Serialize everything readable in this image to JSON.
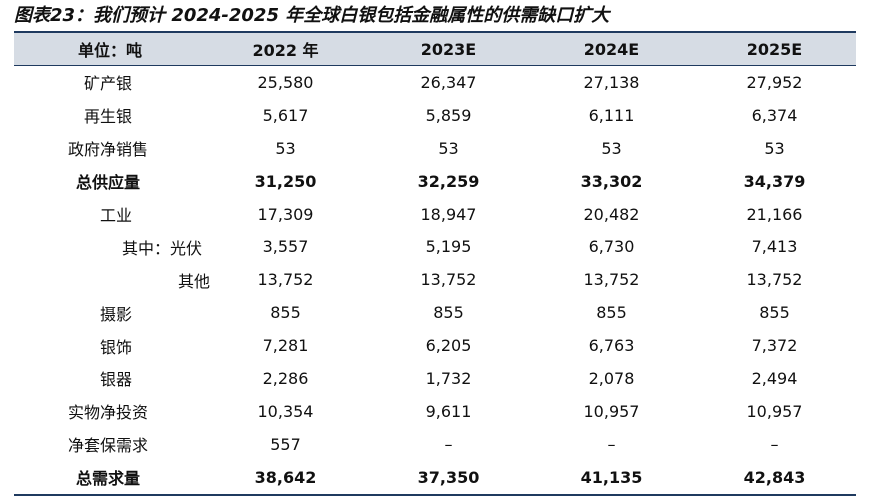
{
  "title": "图表23：我们预计 2024-2025 年全球白银包括金融属性的供需缺口扩大",
  "header": {
    "label": "单位：吨",
    "years": [
      "2022 年",
      "2023E",
      "2024E",
      "2025E"
    ]
  },
  "rows": [
    {
      "label": "矿产银",
      "values": [
        "25,580",
        "26,347",
        "27,138",
        "27,952"
      ]
    },
    {
      "label": "再生银",
      "values": [
        "5,617",
        "5,859",
        "6,111",
        "6,374"
      ]
    },
    {
      "label": "政府净销售",
      "values": [
        "53",
        "53",
        "53",
        "53"
      ]
    },
    {
      "label": "总供应量",
      "values": [
        "31,250",
        "32,259",
        "33,302",
        "34,379"
      ]
    },
    {
      "label": "工业",
      "values": [
        "17,309",
        "18,947",
        "20,482",
        "21,166"
      ]
    },
    {
      "label": "其中：光伏",
      "values": [
        "3,557",
        "5,195",
        "6,730",
        "7,413"
      ]
    },
    {
      "label": "其他",
      "values": [
        "13,752",
        "13,752",
        "13,752",
        "13,752"
      ]
    },
    {
      "label": "摄影",
      "values": [
        "855",
        "855",
        "855",
        "855"
      ]
    },
    {
      "label": "银饰",
      "values": [
        "7,281",
        "6,205",
        "6,763",
        "7,372"
      ]
    },
    {
      "label": "银器",
      "values": [
        "2,286",
        "1,732",
        "2,078",
        "2,494"
      ]
    },
    {
      "label": "实物净投资",
      "values": [
        "10,354",
        "9,611",
        "10,957",
        "10,957"
      ]
    },
    {
      "label": "净套保需求",
      "values": [
        "557",
        "–",
        "–",
        "–"
      ]
    },
    {
      "label": "总需求量",
      "values": [
        "38,642",
        "37,350",
        "41,135",
        "42,843"
      ]
    }
  ]
}
